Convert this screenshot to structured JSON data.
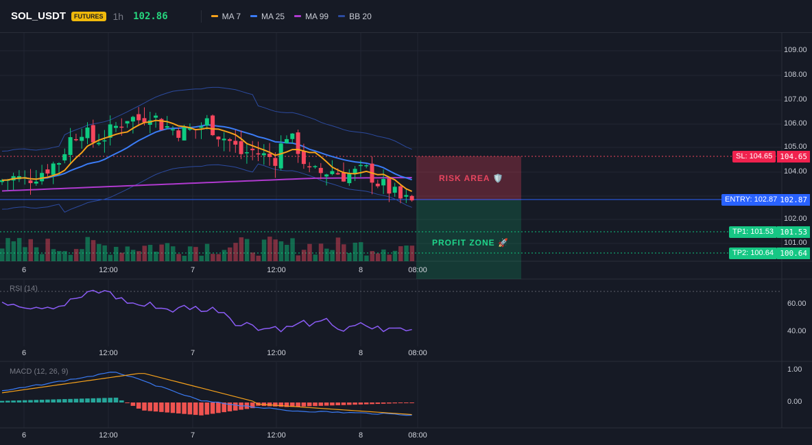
{
  "header": {
    "symbol": "SOL_USDT",
    "badge": "FUTURES",
    "timeframe": "1h",
    "price": "102.86",
    "legend": [
      {
        "label": "MA 7",
        "color": "#f7a21b"
      },
      {
        "label": "MA 25",
        "color": "#3b7cf6"
      },
      {
        "label": "MA 99",
        "color": "#b03ad0"
      },
      {
        "label": "BB 20",
        "color": "#2c4ba0"
      }
    ]
  },
  "price_axis": [
    "109.00",
    "108.00",
    "107.00",
    "106.00",
    "105.00",
    "104.00",
    "102.00",
    "101.00"
  ],
  "time_labels": [
    "6",
    "12:00",
    "7",
    "12:00",
    "8",
    "08:00"
  ],
  "levels": {
    "sl": {
      "label": "SL: 104.65",
      "value": "104.65"
    },
    "entry": {
      "label": "ENTRY: 102.87",
      "value": "102.87"
    },
    "tp1": {
      "label": "TP1: 101.53",
      "value": "101.53"
    },
    "tp2": {
      "label": "TP2: 100.64",
      "value": "100.64"
    }
  },
  "zones": {
    "risk": "RISK AREA 🛡️",
    "profit": "PROFIT ZONE 🚀"
  },
  "rsi": {
    "title": "RSI (14)",
    "ticks": [
      "60.00",
      "40.00"
    ]
  },
  "macd": {
    "title": "MACD (12, 26, 9)",
    "ticks": [
      "1.00",
      "0.00"
    ]
  },
  "colors": {
    "up": "#0ecb81",
    "down": "#f6465d",
    "bg": "#161a25",
    "grid": "#222633"
  },
  "chart_data": {
    "type": "candlestick",
    "symbol": "SOL_USDT",
    "interval": "1h",
    "last": 102.86,
    "ylim": [
      100.3,
      109.4
    ],
    "sl": 104.65,
    "entry": 102.87,
    "tp1": 101.53,
    "tp2": 100.64
  }
}
